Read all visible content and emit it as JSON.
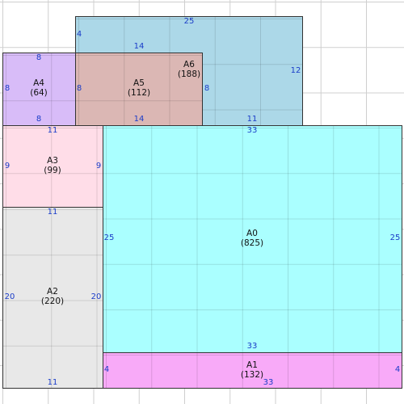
{
  "colors": {
    "A0": "#aaffff",
    "A1": "#f8aaf8",
    "A2": "#e8e8e8",
    "A3": "#ffdde8",
    "A4": "#d8bcf8",
    "A5": "#dbb7b4",
    "A6": "#acd8e8",
    "dimension_text": "#1a3cc8"
  },
  "rectangles": [
    {
      "id": "A6",
      "name": "A6",
      "area": "(188)",
      "dims": [
        "25",
        "12",
        "4",
        "8",
        "14",
        "11"
      ]
    },
    {
      "id": "A4",
      "name": "A4",
      "area": "(64)",
      "dims": [
        "8",
        "8",
        "8",
        "8"
      ]
    },
    {
      "id": "A5",
      "name": "A5",
      "area": "(112)",
      "dims": [
        "14",
        "14",
        "8",
        "8"
      ]
    },
    {
      "id": "A3",
      "name": "A3",
      "area": "(99)",
      "dims": [
        "11",
        "11",
        "9",
        "9"
      ]
    },
    {
      "id": "A2",
      "name": "A2",
      "area": "(220)",
      "dims": [
        "11",
        "20",
        "20"
      ]
    },
    {
      "id": "A0",
      "name": "A0",
      "area": "(825)",
      "dims": [
        "33",
        "25",
        "25",
        "33"
      ]
    },
    {
      "id": "A1",
      "name": "A1",
      "area": "(132)",
      "dims": [
        "4",
        "4",
        "33"
      ]
    }
  ]
}
